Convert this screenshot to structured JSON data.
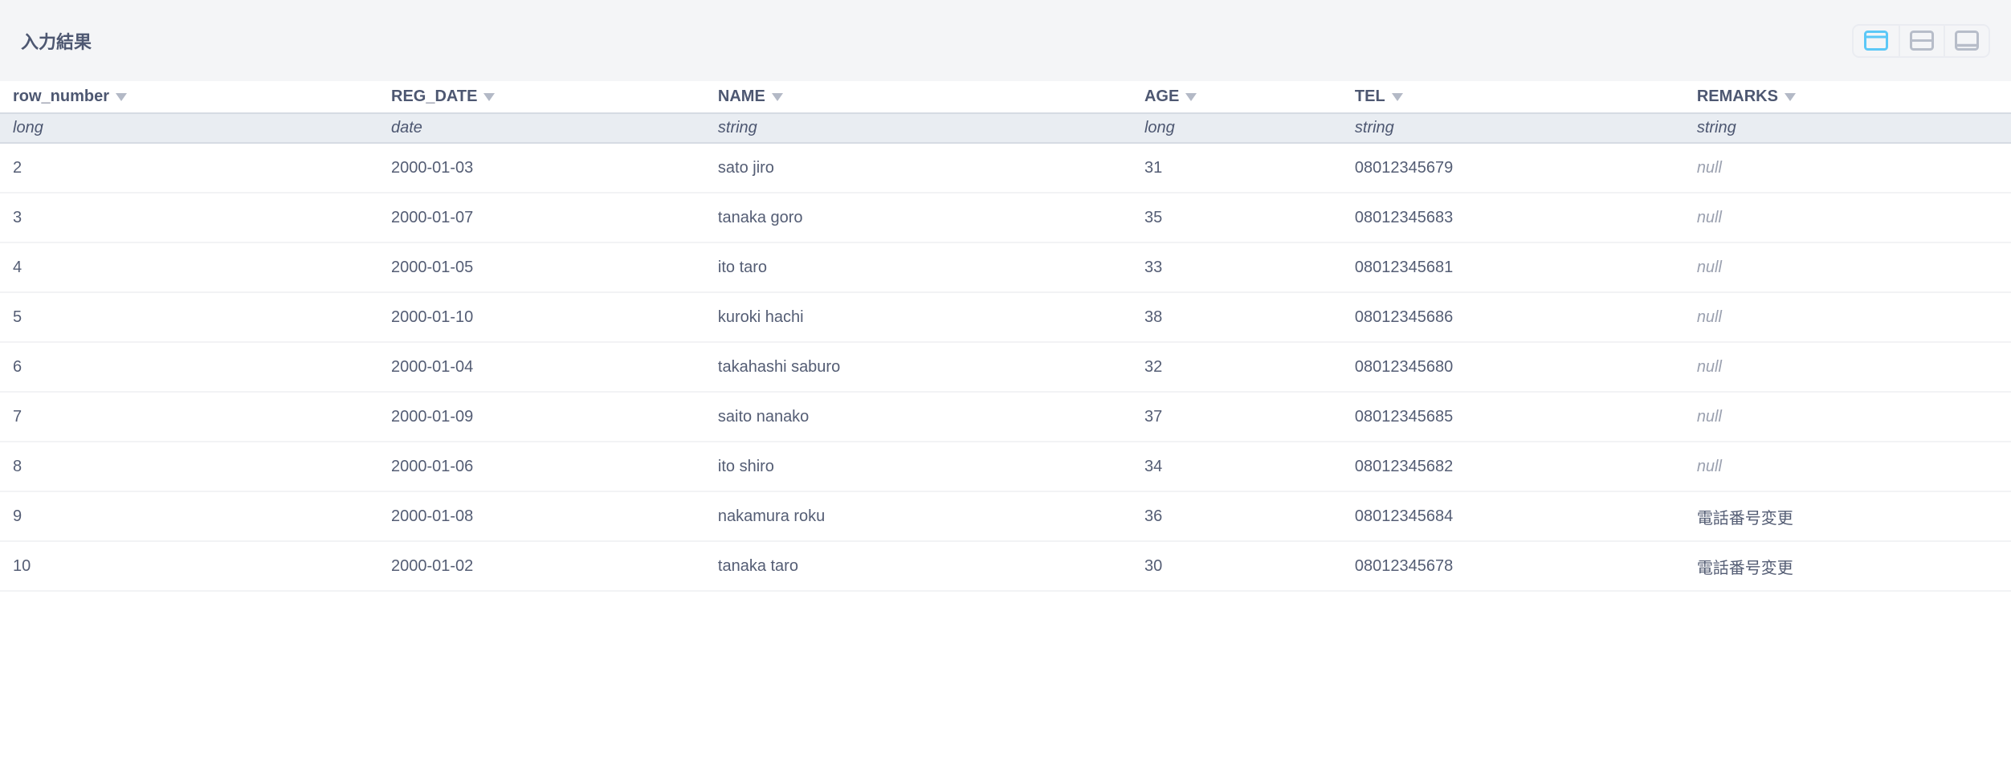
{
  "panel": {
    "title": "入力結果"
  },
  "toolbar": {
    "layout_buttons": [
      {
        "icon": "panel-top-layout-icon",
        "active": true
      },
      {
        "icon": "panel-split-layout-icon",
        "active": false
      },
      {
        "icon": "panel-bottom-layout-icon",
        "active": false
      }
    ]
  },
  "colors": {
    "accent_blue": "#5cc8f7",
    "icon_gray": "#b7bdc9",
    "toolbar_bg": "#f4f5f7",
    "type_row_bg": "#e9edf2",
    "header_text": "#4d5771",
    "text": "#545d74",
    "null_text": "#9ba1b0"
  },
  "table": {
    "columns": [
      {
        "label": "row_number",
        "type": "long"
      },
      {
        "label": "REG_DATE",
        "type": "date"
      },
      {
        "label": "NAME",
        "type": "string"
      },
      {
        "label": "AGE",
        "type": "long"
      },
      {
        "label": "TEL",
        "type": "string"
      },
      {
        "label": "REMARKS",
        "type": "string"
      }
    ],
    "null_display": "null",
    "rows": [
      [
        "2",
        "2000-01-03",
        "sato jiro",
        "31",
        "08012345679",
        null
      ],
      [
        "3",
        "2000-01-07",
        "tanaka goro",
        "35",
        "08012345683",
        null
      ],
      [
        "4",
        "2000-01-05",
        "ito taro",
        "33",
        "08012345681",
        null
      ],
      [
        "5",
        "2000-01-10",
        "kuroki hachi",
        "38",
        "08012345686",
        null
      ],
      [
        "6",
        "2000-01-04",
        "takahashi saburo",
        "32",
        "08012345680",
        null
      ],
      [
        "7",
        "2000-01-09",
        "saito nanako",
        "37",
        "08012345685",
        null
      ],
      [
        "8",
        "2000-01-06",
        "ito shiro",
        "34",
        "08012345682",
        null
      ],
      [
        "9",
        "2000-01-08",
        "nakamura roku",
        "36",
        "08012345684",
        "電話番号変更"
      ],
      [
        "10",
        "2000-01-02",
        "tanaka taro",
        "30",
        "08012345678",
        "電話番号変更"
      ]
    ]
  }
}
